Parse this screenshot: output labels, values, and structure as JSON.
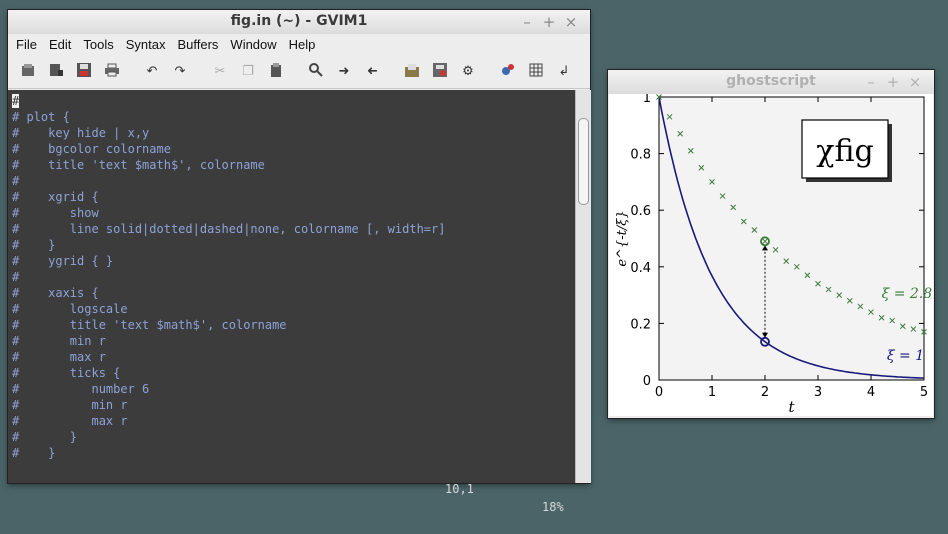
{
  "gvim": {
    "title": "fig.in (~) - GVIM1",
    "window_buttons": [
      "–",
      "+",
      "×"
    ],
    "menu": [
      "File",
      "Edit",
      "Tools",
      "Syntax",
      "Buffers",
      "Window",
      "Help"
    ],
    "toolbar_icons": [
      "open-icon",
      "save-as-icon",
      "save-icon",
      "print-icon",
      "undo-icon",
      "redo-icon",
      "cut-icon",
      "copy-icon",
      "paste-icon",
      "find-icon",
      "find-next-icon",
      "find-prev-icon",
      "load-session-icon",
      "save-session-icon",
      "run-make-icon",
      "build-tags-icon",
      "table-icon",
      "jump-icon"
    ],
    "cursor_char": "#",
    "lines": [
      "# plot {",
      "#    key hide | x,y",
      "#    bgcolor colorname",
      "#    title 'text $math$', colorname",
      "#",
      "#    xgrid {",
      "#       show",
      "#       line solid|dotted|dashed|none, colorname [, width=r]",
      "#    }",
      "#    ygrid { }",
      "#",
      "#    xaxis {",
      "#       logscale",
      "#       title 'text $math$', colorname",
      "#       min r",
      "#       max r",
      "#       ticks {",
      "#          number 6",
      "#          min r",
      "#          max r",
      "#       }",
      "#    }"
    ],
    "status_position": "10,1",
    "status_percent": "18%"
  },
  "ghostscript": {
    "title": "ghostscript",
    "window_buttons": [
      "–",
      "+",
      "×"
    ]
  },
  "chart_data": {
    "type": "line",
    "xlabel": "t",
    "ylabel": "e^{-t/ξ}",
    "xlim": [
      0,
      5
    ],
    "ylim": [
      0,
      1
    ],
    "xticks": [
      "0",
      "1",
      "2",
      "3",
      "4",
      "5"
    ],
    "yticks": [
      "0",
      "0.2",
      "0.4",
      "0.6",
      "0.8",
      "1"
    ],
    "logo_text": "χfig",
    "series": [
      {
        "name": "ξ = 1",
        "style": "solid line",
        "color": "#1a1a7a",
        "x": [
          0,
          0.25,
          0.5,
          1,
          1.5,
          2,
          2.5,
          3,
          3.5,
          4,
          4.5,
          5
        ],
        "values": [
          1,
          0.78,
          0.61,
          0.37,
          0.22,
          0.14,
          0.08,
          0.05,
          0.03,
          0.02,
          0.01,
          0.007
        ]
      },
      {
        "name": "ξ = 2.8",
        "style": "cross markers",
        "color": "#3a7a3a",
        "x": [
          0,
          0.2,
          0.4,
          0.6,
          0.8,
          1.0,
          1.2,
          1.4,
          1.6,
          1.8,
          2.0,
          2.2,
          2.4,
          2.6,
          2.8,
          3.0,
          3.2,
          3.4,
          3.6,
          3.8,
          4.0,
          4.2,
          4.4,
          4.6,
          4.8,
          5.0
        ],
        "values": [
          1.0,
          0.93,
          0.87,
          0.81,
          0.75,
          0.7,
          0.65,
          0.61,
          0.56,
          0.53,
          0.49,
          0.46,
          0.42,
          0.4,
          0.37,
          0.34,
          0.32,
          0.3,
          0.28,
          0.26,
          0.24,
          0.22,
          0.21,
          0.19,
          0.18,
          0.17
        ]
      }
    ],
    "annotations": [
      {
        "label": "ξ = 2.8",
        "x": 4.2,
        "y": 0.29
      },
      {
        "label": "ξ = 1",
        "x": 4.3,
        "y": 0.07
      }
    ],
    "highlight_points": [
      {
        "x": 2,
        "y": 0.49,
        "color": "#3a7a3a"
      },
      {
        "x": 2,
        "y": 0.135,
        "color": "#1a1a7a"
      }
    ],
    "arrow": {
      "x": 2,
      "from_y": 0.135,
      "to_y": 0.49,
      "style": "dotted double-headed"
    }
  }
}
